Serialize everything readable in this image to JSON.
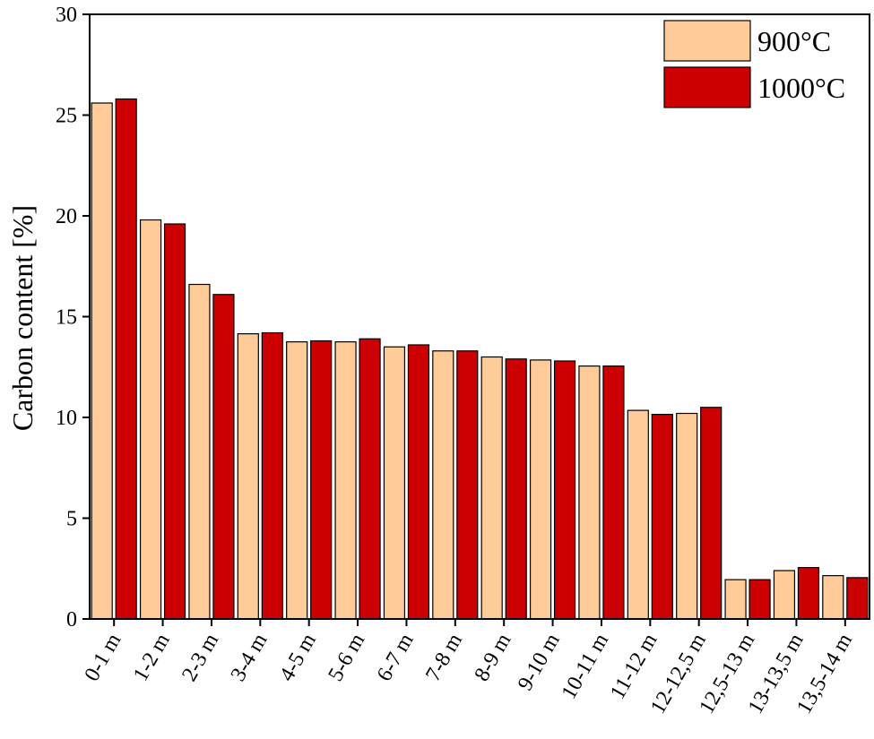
{
  "chart_data": {
    "type": "bar",
    "title": "",
    "xlabel": "",
    "ylabel": "Carbon content [%]",
    "ylim": [
      0,
      30
    ],
    "yticks": [
      0,
      5,
      10,
      15,
      20,
      25,
      30
    ],
    "grid": false,
    "legend_position": "top-right",
    "categories": [
      "0-1 m",
      "1-2 m",
      "2-3 m",
      "3-4 m",
      "4-5 m",
      "5-6 m",
      "6-7 m",
      "7-8 m",
      "8-9 m",
      "9-10 m",
      "10-11 m",
      "11-12 m",
      "12-12,5 m",
      "12,5-13 m",
      "13-13,5 m",
      "13,5-14 m"
    ],
    "series": [
      {
        "name": "900°C",
        "color": "#FFCC99",
        "values": [
          25.6,
          19.8,
          16.6,
          14.15,
          13.75,
          13.75,
          13.5,
          13.3,
          13.0,
          12.85,
          12.55,
          10.35,
          10.2,
          1.95,
          2.4,
          2.15
        ]
      },
      {
        "name": "1000°C",
        "color": "#CC0000",
        "values": [
          25.8,
          19.6,
          16.1,
          14.2,
          13.8,
          13.9,
          13.6,
          13.3,
          12.9,
          12.8,
          12.55,
          10.15,
          10.5,
          1.95,
          2.55,
          2.05
        ]
      }
    ]
  }
}
